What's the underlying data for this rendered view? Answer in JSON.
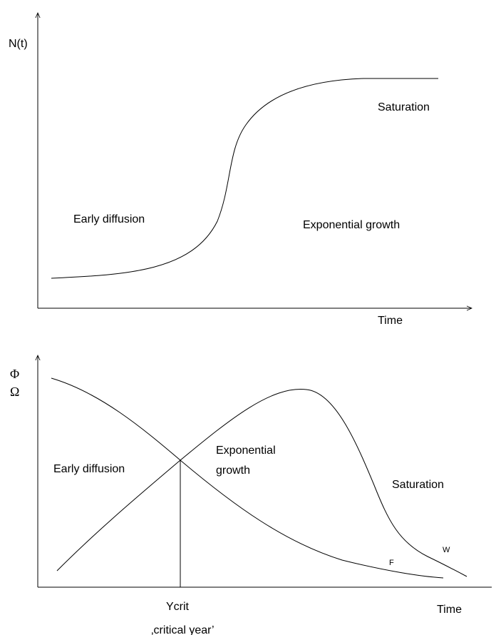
{
  "top_panel": {
    "y_label": "N(t)",
    "x_label": "Time",
    "regions": [
      "Early diffusion",
      "Exponential growth",
      "Saturation"
    ]
  },
  "bottom_panel": {
    "y_labels": [
      "Φ",
      "Ω"
    ],
    "x_label": "Time",
    "regions": [
      "Early diffusion",
      "Exponential",
      "growth",
      "Saturation"
    ],
    "curve_labels": [
      "F",
      "W"
    ],
    "marker_label": "Ycrit",
    "marker_note": "‚critical year’"
  }
}
